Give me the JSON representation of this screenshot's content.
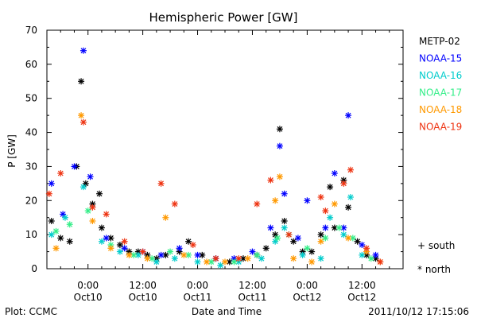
{
  "chart_data": {
    "type": "scatter",
    "title": "Hemispheric Power [GW]",
    "xlabel": "Date and Time",
    "ylabel": "P [GW]",
    "ylim": [
      0,
      70
    ],
    "yticks": [
      0,
      10,
      20,
      30,
      40,
      50,
      60,
      70
    ],
    "xlim": [
      "2011-10-09 15:00",
      "2011-10-12 21:00"
    ],
    "xticks": [
      {
        "at": "2011-10-10 00:00",
        "label": "0:00",
        "sublabel": "Oct10"
      },
      {
        "at": "2011-10-10 12:00",
        "label": "12:00",
        "sublabel": "Oct10"
      },
      {
        "at": "2011-10-11 00:00",
        "label": "0:00",
        "sublabel": "Oct11"
      },
      {
        "at": "2011-10-11 12:00",
        "label": "12:00",
        "sublabel": "Oct11"
      },
      {
        "at": "2011-10-12 00:00",
        "label": "0:00",
        "sublabel": "Oct12"
      },
      {
        "at": "2011-10-12 12:00",
        "label": "12:00",
        "sublabel": "Oct12"
      }
    ],
    "marker_legend": [
      {
        "symbol": "+",
        "label": "south"
      },
      {
        "symbol": "*",
        "label": "north"
      }
    ],
    "series": [
      {
        "name": "METP-02",
        "color": "#000000",
        "points": [
          [
            "2011-10-09 16:00",
            14
          ],
          [
            "2011-10-09 18:00",
            9
          ],
          [
            "2011-10-09 20:00",
            8
          ],
          [
            "2011-10-09 21:30",
            30
          ],
          [
            "2011-10-09 22:30",
            55
          ],
          [
            "2011-10-09 23:30",
            25
          ],
          [
            "2011-10-10 01:00",
            19
          ],
          [
            "2011-10-10 02:30",
            22
          ],
          [
            "2011-10-10 03:00",
            12
          ],
          [
            "2011-10-10 05:00",
            9
          ],
          [
            "2011-10-10 07:00",
            7
          ],
          [
            "2011-10-10 09:00",
            5
          ],
          [
            "2011-10-10 11:00",
            5
          ],
          [
            "2011-10-10 13:00",
            4
          ],
          [
            "2011-10-10 15:00",
            3
          ],
          [
            "2011-10-10 17:00",
            4
          ],
          [
            "2011-10-10 20:00",
            5
          ],
          [
            "2011-10-10 22:00",
            8
          ],
          [
            "2011-10-11 01:00",
            4
          ],
          [
            "2011-10-11 04:00",
            3
          ],
          [
            "2011-10-11 07:00",
            2
          ],
          [
            "2011-10-11 10:00",
            3
          ],
          [
            "2011-10-11 13:00",
            4
          ],
          [
            "2011-10-11 15:00",
            6
          ],
          [
            "2011-10-11 17:00",
            10
          ],
          [
            "2011-10-11 18:00",
            41
          ],
          [
            "2011-10-11 19:00",
            14
          ],
          [
            "2011-10-11 21:00",
            8
          ],
          [
            "2011-10-11 23:00",
            5
          ],
          [
            "2011-10-12 01:00",
            5
          ],
          [
            "2011-10-12 03:00",
            10
          ],
          [
            "2011-10-12 05:00",
            24
          ],
          [
            "2011-10-12 06:00",
            12
          ],
          [
            "2011-10-12 08:00",
            26
          ],
          [
            "2011-10-12 09:00",
            18
          ],
          [
            "2011-10-12 11:00",
            8
          ],
          [
            "2011-10-12 13:00",
            4
          ],
          [
            "2011-10-12 15:00",
            3
          ]
        ]
      },
      {
        "name": "NOAA-15",
        "color": "#0000ff",
        "points": [
          [
            "2011-10-09 16:00",
            25
          ],
          [
            "2011-10-09 18:30",
            16
          ],
          [
            "2011-10-09 21:00",
            30
          ],
          [
            "2011-10-09 23:00",
            64
          ],
          [
            "2011-10-10 00:30",
            27
          ],
          [
            "2011-10-10 04:00",
            9
          ],
          [
            "2011-10-10 08:00",
            6
          ],
          [
            "2011-10-10 12:00",
            5
          ],
          [
            "2011-10-10 16:00",
            4
          ],
          [
            "2011-10-10 20:00",
            6
          ],
          [
            "2011-10-11 00:00",
            4
          ],
          [
            "2011-10-11 04:00",
            3
          ],
          [
            "2011-10-11 08:00",
            3
          ],
          [
            "2011-10-11 12:00",
            5
          ],
          [
            "2011-10-11 16:00",
            12
          ],
          [
            "2011-10-11 18:00",
            36
          ],
          [
            "2011-10-11 19:00",
            22
          ],
          [
            "2011-10-11 22:00",
            9
          ],
          [
            "2011-10-12 00:00",
            20
          ],
          [
            "2011-10-12 04:00",
            12
          ],
          [
            "2011-10-12 06:00",
            28
          ],
          [
            "2011-10-12 08:00",
            12
          ],
          [
            "2011-10-12 09:00",
            45
          ],
          [
            "2011-10-12 12:00",
            7
          ],
          [
            "2011-10-12 15:00",
            4
          ]
        ]
      },
      {
        "name": "NOAA-16",
        "color": "#00cccc",
        "points": [
          [
            "2011-10-09 16:00",
            10
          ],
          [
            "2011-10-09 19:00",
            15
          ],
          [
            "2011-10-09 23:00",
            24
          ],
          [
            "2011-10-10 03:00",
            8
          ],
          [
            "2011-10-10 07:00",
            5
          ],
          [
            "2011-10-10 11:00",
            4
          ],
          [
            "2011-10-10 15:00",
            2
          ],
          [
            "2011-10-10 19:00",
            3
          ],
          [
            "2011-10-11 00:00",
            2
          ],
          [
            "2011-10-11 05:00",
            1
          ],
          [
            "2011-10-11 09:00",
            2
          ],
          [
            "2011-10-11 14:00",
            3
          ],
          [
            "2011-10-11 17:00",
            8
          ],
          [
            "2011-10-11 19:00",
            12
          ],
          [
            "2011-10-11 23:00",
            4
          ],
          [
            "2011-10-12 03:00",
            3
          ],
          [
            "2011-10-12 05:00",
            15
          ],
          [
            "2011-10-12 08:00",
            10
          ],
          [
            "2011-10-12 09:30",
            21
          ],
          [
            "2011-10-12 12:00",
            4
          ]
        ]
      },
      {
        "name": "NOAA-17",
        "color": "#33ee88",
        "points": [
          [
            "2011-10-09 17:00",
            11
          ],
          [
            "2011-10-09 20:00",
            13
          ],
          [
            "2011-10-10 00:00",
            17
          ],
          [
            "2011-10-10 05:00",
            7
          ],
          [
            "2011-10-10 10:00",
            4
          ],
          [
            "2011-10-10 14:00",
            3
          ],
          [
            "2011-10-10 18:00",
            5
          ],
          [
            "2011-10-10 22:00",
            4
          ],
          [
            "2011-10-11 03:00",
            2
          ],
          [
            "2011-10-11 08:00",
            2
          ],
          [
            "2011-10-11 13:00",
            4
          ],
          [
            "2011-10-11 17:30",
            9
          ],
          [
            "2011-10-11 20:00",
            10
          ],
          [
            "2011-10-12 00:00",
            6
          ],
          [
            "2011-10-12 04:00",
            9
          ],
          [
            "2011-10-12 07:00",
            12
          ],
          [
            "2011-10-12 10:00",
            9
          ],
          [
            "2011-10-12 14:00",
            3
          ]
        ]
      },
      {
        "name": "NOAA-18",
        "color": "#ff9900",
        "points": [
          [
            "2011-10-09 17:00",
            6
          ],
          [
            "2011-10-09 22:30",
            45
          ],
          [
            "2011-10-10 01:00",
            14
          ],
          [
            "2011-10-10 05:00",
            6
          ],
          [
            "2011-10-10 09:00",
            4
          ],
          [
            "2011-10-10 13:00",
            3
          ],
          [
            "2011-10-10 17:00",
            15
          ],
          [
            "2011-10-10 21:00",
            4
          ],
          [
            "2011-10-11 02:00",
            2
          ],
          [
            "2011-10-11 06:00",
            2
          ],
          [
            "2011-10-11 11:00",
            3
          ],
          [
            "2011-10-11 17:00",
            20
          ],
          [
            "2011-10-11 18:00",
            27
          ],
          [
            "2011-10-11 21:00",
            3
          ],
          [
            "2011-10-12 01:00",
            2
          ],
          [
            "2011-10-12 03:00",
            8
          ],
          [
            "2011-10-12 06:00",
            19
          ],
          [
            "2011-10-12 09:00",
            9
          ],
          [
            "2011-10-12 13:00",
            5
          ],
          [
            "2011-10-12 16:00",
            2
          ]
        ]
      },
      {
        "name": "NOAA-19",
        "color": "#ee3311",
        "points": [
          [
            "2011-10-09 15:30",
            22
          ],
          [
            "2011-10-09 18:00",
            28
          ],
          [
            "2011-10-09 23:00",
            43
          ],
          [
            "2011-10-10 01:00",
            18
          ],
          [
            "2011-10-10 04:00",
            16
          ],
          [
            "2011-10-10 08:00",
            8
          ],
          [
            "2011-10-10 12:00",
            5
          ],
          [
            "2011-10-10 16:00",
            25
          ],
          [
            "2011-10-10 19:00",
            19
          ],
          [
            "2011-10-10 23:00",
            7
          ],
          [
            "2011-10-11 04:00",
            3
          ],
          [
            "2011-10-11 09:00",
            3
          ],
          [
            "2011-10-11 13:00",
            19
          ],
          [
            "2011-10-11 16:00",
            26
          ],
          [
            "2011-10-11 20:00",
            10
          ],
          [
            "2011-10-12 03:00",
            21
          ],
          [
            "2011-10-12 04:00",
            17
          ],
          [
            "2011-10-12 08:00",
            25
          ],
          [
            "2011-10-12 09:30",
            29
          ],
          [
            "2011-10-12 13:00",
            6
          ],
          [
            "2011-10-12 16:00",
            2
          ]
        ]
      }
    ]
  },
  "footer": {
    "plot_credit": "Plot: CCMC",
    "timestamp": "2011/10/12 17:15:06"
  }
}
